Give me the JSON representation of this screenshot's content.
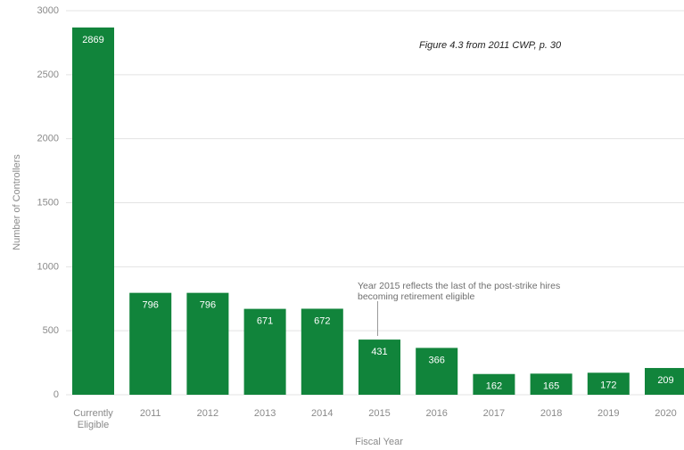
{
  "caption": "Figure 4.3 from 2011 CWP, p. 30",
  "colors": {
    "bar": "#11843b",
    "grid": "#e3e3e3",
    "text": "#8a8a8a"
  },
  "chart_data": {
    "type": "bar",
    "categories": [
      "Currently Eligible",
      "2011",
      "2012",
      "2013",
      "2014",
      "2015",
      "2016",
      "2017",
      "2018",
      "2019",
      "2020"
    ],
    "values": [
      2869,
      796,
      796,
      671,
      672,
      431,
      366,
      162,
      165,
      172,
      209
    ],
    "xlabel": "Fiscal Year",
    "ylabel": "Number of Controllers",
    "ylim": [
      0,
      3000
    ],
    "yticks": [
      0,
      500,
      1000,
      1500,
      2000,
      2500,
      3000
    ],
    "grid": true,
    "annotation": {
      "category": "2015",
      "lines": [
        "Year 2015 reflects the last of the post-strike hires",
        "becoming retirement eligible"
      ]
    }
  }
}
